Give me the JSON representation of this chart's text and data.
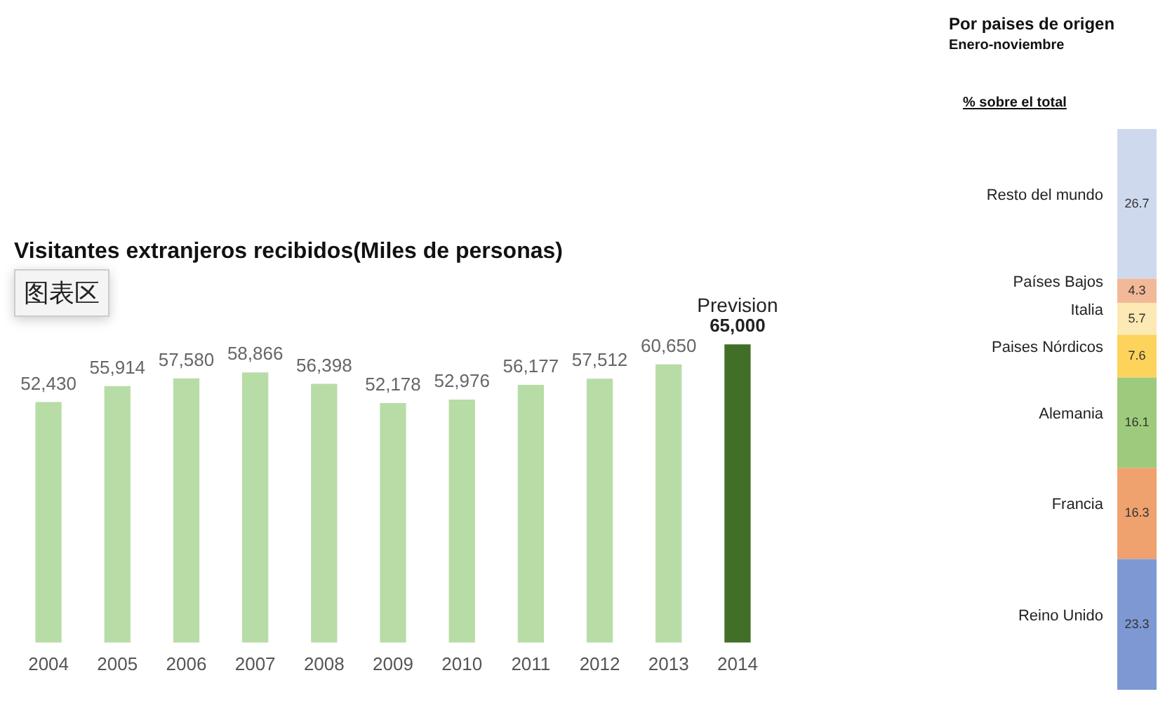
{
  "chart_data": [
    {
      "type": "bar",
      "title": "Visitantes extranjeros recibidos(Miles de personas)",
      "categories": [
        "2004",
        "2005",
        "2006",
        "2007",
        "2008",
        "2009",
        "2010",
        "2011",
        "2012",
        "2013",
        "2014"
      ],
      "values": [
        52430,
        55914,
        57580,
        58866,
        56398,
        52178,
        52976,
        56177,
        57512,
        60650,
        65000
      ],
      "colors": [
        "#b8dca6",
        "#b8dca6",
        "#b8dca6",
        "#b8dca6",
        "#b8dca6",
        "#b8dca6",
        "#b8dca6",
        "#b8dca6",
        "#b8dca6",
        "#b8dca6",
        "#426f28"
      ],
      "value_labels": [
        "52,430",
        "55,914",
        "57,580",
        "58,866",
        "56,398",
        "52,178",
        "52,976",
        "56,177",
        "57,512",
        "60,650",
        "65,000"
      ],
      "data_labels": true,
      "grid": false,
      "legend": false,
      "annotations": [
        {
          "text": "Prevision",
          "x": "2014",
          "y": 65000
        },
        "图表区"
      ]
    },
    {
      "type": "bar",
      "title": "Por paises de origen",
      "subtitle": "Enero-noviembre",
      "stacked": true,
      "categories": [
        null
      ],
      "series": [
        {
          "name": "Reino Unido",
          "color": "#7d98d3",
          "values": [
            23.3
          ]
        },
        {
          "name": "Francia",
          "color": "#efa16e",
          "values": [
            16.3
          ]
        },
        {
          "name": "Alemania",
          "color": "#9dcb7b",
          "values": [
            16.1
          ]
        },
        {
          "name": "Paises Nórdicos",
          "color": "#fdd35c",
          "values": [
            7.6
          ]
        },
        {
          "name": "Italia",
          "color": "#fde9b3",
          "values": [
            5.7
          ]
        },
        {
          "name": "Países Bajos",
          "color": "#f2b999",
          "values": [
            4.3
          ]
        },
        {
          "name": "Resto del mundo",
          "color": "#cfd9ee",
          "values": [
            26.7
          ]
        }
      ],
      "data_labels": true,
      "grid": false,
      "legend": false,
      "annotations": [
        "% sobre el total"
      ]
    }
  ]
}
